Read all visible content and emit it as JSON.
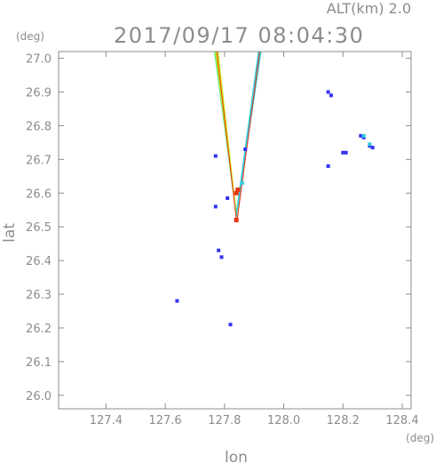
{
  "header": {
    "alt_label": "ALT(km)  2.0",
    "timestamp": "2017/09/17  08:04:30"
  },
  "chart_data": {
    "type": "scatter",
    "title": "2017/09/17  08:04:30",
    "subtitle": "ALT(km)  2.0",
    "xlabel": "lon",
    "ylabel": "lat",
    "x_unit": "(deg)",
    "y_unit": "(deg)",
    "xlim": [
      127.24,
      128.43
    ],
    "ylim": [
      25.96,
      27.02
    ],
    "x_ticks": [
      "127.4",
      "127.6",
      "127.8",
      "128.0",
      "128.2",
      "128.4"
    ],
    "y_ticks": [
      "26.0",
      "26.1",
      "26.2",
      "26.3",
      "26.4",
      "26.5",
      "26.6",
      "26.7",
      "26.8",
      "26.9",
      "27.0"
    ],
    "grid": false,
    "legend": "none",
    "colors": {
      "weak": "#3333ee",
      "light": "#33ccdd",
      "moderate": "#44ee66",
      "strong": "#ccee22",
      "heavy": "#ee3311",
      "axis": "#8c8c8c"
    },
    "echo_wedge": {
      "apex": [
        127.84,
        26.52
      ],
      "left_top": [
        127.765,
        27.02
      ],
      "right_top": [
        127.925,
        27.02
      ]
    },
    "series": [
      {
        "category": "weak",
        "points": [
          [
            127.64,
            26.28
          ],
          [
            127.79,
            26.41
          ],
          [
            127.78,
            26.43
          ],
          [
            127.82,
            26.21
          ],
          [
            127.77,
            26.56
          ],
          [
            127.77,
            26.71
          ],
          [
            127.87,
            26.73
          ],
          [
            128.15,
            26.9
          ],
          [
            128.16,
            26.89
          ],
          [
            128.15,
            26.68
          ],
          [
            128.2,
            26.72
          ],
          [
            128.21,
            26.72
          ],
          [
            128.26,
            26.77
          ],
          [
            128.27,
            26.765
          ],
          [
            128.29,
            26.74
          ],
          [
            128.3,
            26.735
          ],
          [
            127.81,
            26.585
          ]
        ]
      },
      {
        "category": "light",
        "points": [
          [
            128.27,
            26.77
          ],
          [
            128.29,
            26.745
          ],
          [
            127.86,
            26.63
          ]
        ]
      },
      {
        "category": "heavy",
        "points": [
          [
            127.84,
            26.6
          ],
          [
            127.845,
            26.61
          ],
          [
            127.84,
            26.52
          ]
        ]
      }
    ]
  }
}
